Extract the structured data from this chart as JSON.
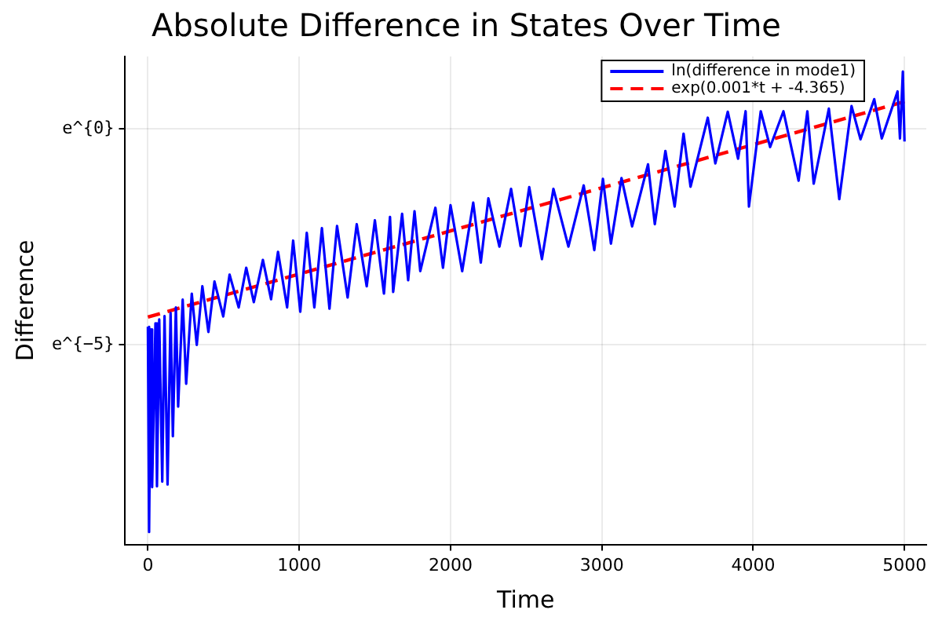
{
  "chart_data": {
    "type": "line",
    "title": "Absolute Difference in States Over Time",
    "xlabel": "Time",
    "ylabel": "Difference",
    "xlim": [
      -150,
      5144
    ],
    "xticks": [
      0,
      1000,
      2000,
      3000,
      4000,
      5000
    ],
    "ylim": [
      -9.64,
      1.68
    ],
    "yticks": [
      {
        "value": 0,
        "label": "e^{0}"
      },
      {
        "value": -5,
        "label": "e^{−5}"
      }
    ],
    "grid": true,
    "legend": "top right",
    "series": [
      {
        "name": "ln(difference in mode1)",
        "color": "#0000ff",
        "line_style": "solid",
        "x": [
          0,
          8,
          20,
          28,
          50,
          60,
          75,
          95,
          110,
          130,
          150,
          165,
          185,
          200,
          230,
          253,
          290,
          323,
          360,
          400,
          440,
          498,
          540,
          600,
          650,
          700,
          760,
          814,
          860,
          920,
          960,
          1007,
          1050,
          1100,
          1150,
          1200,
          1250,
          1320,
          1380,
          1446,
          1500,
          1560,
          1600,
          1621,
          1680,
          1720,
          1762,
          1800,
          1900,
          1950,
          2000,
          2077,
          2150,
          2200,
          2250,
          2323,
          2400,
          2463,
          2520,
          2604,
          2680,
          2779,
          2880,
          2950,
          3007,
          3060,
          3130,
          3200,
          3305,
          3350,
          3420,
          3481,
          3540,
          3586,
          3700,
          3750,
          3832,
          3900,
          3950,
          3972,
          4050,
          4112,
          4200,
          4300,
          4358,
          4400,
          4500,
          4569,
          4650,
          4709,
          4800,
          4850,
          4954,
          4970,
          4989,
          5000
        ],
        "values": [
          -4.59,
          -9.35,
          -4.65,
          -8.31,
          -4.51,
          -8.29,
          -4.42,
          -8.18,
          -4.34,
          -8.25,
          -4.27,
          -7.13,
          -4.14,
          -6.44,
          -3.96,
          -5.91,
          -3.82,
          -5.01,
          -3.65,
          -4.71,
          -3.54,
          -4.35,
          -3.38,
          -4.14,
          -3.22,
          -4.02,
          -3.04,
          -3.95,
          -2.85,
          -4.14,
          -2.59,
          -4.24,
          -2.41,
          -4.14,
          -2.3,
          -4.17,
          -2.25,
          -3.91,
          -2.21,
          -3.65,
          -2.12,
          -3.82,
          -2.04,
          -3.78,
          -1.97,
          -3.51,
          -1.91,
          -3.3,
          -1.83,
          -3.22,
          -1.77,
          -3.3,
          -1.71,
          -3.1,
          -1.61,
          -2.73,
          -1.39,
          -2.72,
          -1.35,
          -3.02,
          -1.39,
          -2.73,
          -1.31,
          -2.81,
          -1.16,
          -2.66,
          -1.14,
          -2.26,
          -0.82,
          -2.21,
          -0.51,
          -1.8,
          -0.11,
          -1.34,
          0.26,
          -0.8,
          0.4,
          -0.69,
          0.41,
          -1.8,
          0.41,
          -0.42,
          0.41,
          -1.2,
          0.41,
          -1.27,
          0.47,
          -1.63,
          0.53,
          -0.24,
          0.69,
          -0.22,
          0.87,
          -0.22,
          1.33,
          -0.29
        ]
      },
      {
        "name": "exp(0.001*t + -4.365)",
        "color": "#ff0000",
        "line_style": "dashed",
        "x": [
          0,
          5000
        ],
        "values": [
          -4.365,
          0.635
        ]
      }
    ]
  }
}
